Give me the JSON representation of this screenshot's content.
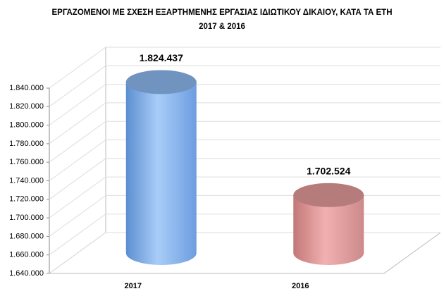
{
  "chart_data": {
    "type": "bar",
    "title": "ΕΡΓΑΖΟΜΕΝΟΙ ΜΕ ΣΧΕΣΗ ΕΞΑΡΤΗΜΕΝΗΣ ΕΡΓΑΣΙΑΣ ΙΔΙΩΤΙΚΟΥ ΔΙΚΑΙΟΥ, ΚΑΤΑ ΤΑ ΕΤΗ",
    "subtitle": "2017 & 2016",
    "categories": [
      "2017",
      "2016"
    ],
    "values": [
      1824437,
      1702524
    ],
    "value_labels": [
      "1.824.437",
      "1.702.524"
    ],
    "colors": [
      "#8db8ef",
      "#e39a9a"
    ],
    "ylim": [
      1640000,
      1840000
    ],
    "yticks": [
      {
        "value": 1640000,
        "label": "1.640.000"
      },
      {
        "value": 1660000,
        "label": "1.660.000"
      },
      {
        "value": 1680000,
        "label": "1.680.000"
      },
      {
        "value": 1700000,
        "label": "1.700.000"
      },
      {
        "value": 1720000,
        "label": "1.720.000"
      },
      {
        "value": 1740000,
        "label": "1.740.000"
      },
      {
        "value": 1760000,
        "label": "1.760.000"
      },
      {
        "value": 1780000,
        "label": "1.780.000"
      },
      {
        "value": 1800000,
        "label": "1.800.000"
      },
      {
        "value": 1820000,
        "label": "1.820.000"
      },
      {
        "value": 1840000,
        "label": "1.840.000"
      }
    ],
    "grid": true
  }
}
